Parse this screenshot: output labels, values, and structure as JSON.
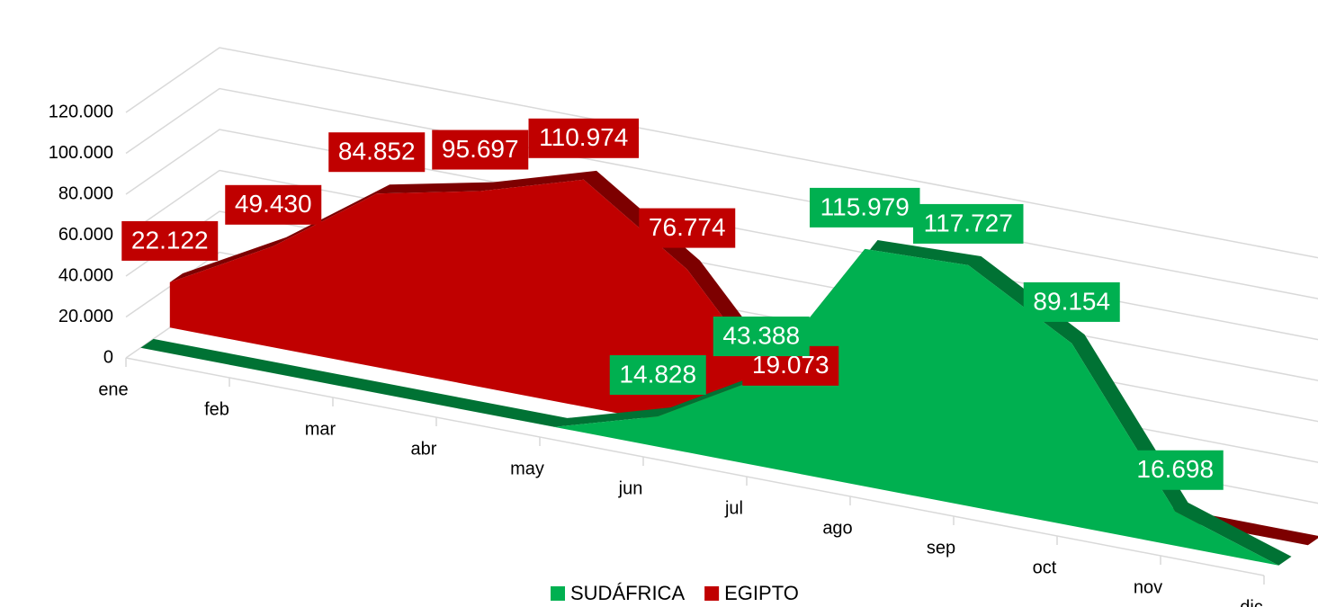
{
  "chart_data": {
    "type": "area3d",
    "categories": [
      "ene",
      "feb",
      "mar",
      "abr",
      "may",
      "jun",
      "jul",
      "ago",
      "sep",
      "oct",
      "nov",
      "dic"
    ],
    "series": [
      {
        "name": "SUDÁFRICA",
        "color": "#00b050",
        "values": [
          0,
          0,
          0,
          0,
          0,
          14828,
          43388,
          115979,
          117727,
          89154,
          16698,
          0
        ],
        "value_labels": [
          null,
          null,
          null,
          null,
          null,
          "14.828",
          "43.388",
          "115.979",
          "117.727",
          "89.154",
          "16.698",
          null
        ]
      },
      {
        "name": "EGIPTO",
        "color": "#c00000",
        "values": [
          22122,
          49430,
          84852,
          95697,
          110974,
          76774,
          19073,
          0,
          0,
          0,
          0,
          0
        ],
        "value_labels": [
          "22.122",
          "49.430",
          "84.852",
          "95.697",
          "110.974",
          "76.774",
          "19.073",
          null,
          null,
          null,
          null,
          null
        ]
      }
    ],
    "ylim": [
      0,
      120000
    ],
    "yticks": [
      0,
      {
        "value": 20000,
        "label": "20.000"
      },
      {
        "value": 40000,
        "label": "40.000"
      },
      {
        "value": 60000,
        "label": "60.000"
      },
      {
        "value": 80000,
        "label": "80.000"
      },
      {
        "value": 100000,
        "label": "100.000"
      },
      {
        "value": 120000,
        "label": "120.000"
      }
    ],
    "grid": true,
    "legend": "bottom"
  }
}
